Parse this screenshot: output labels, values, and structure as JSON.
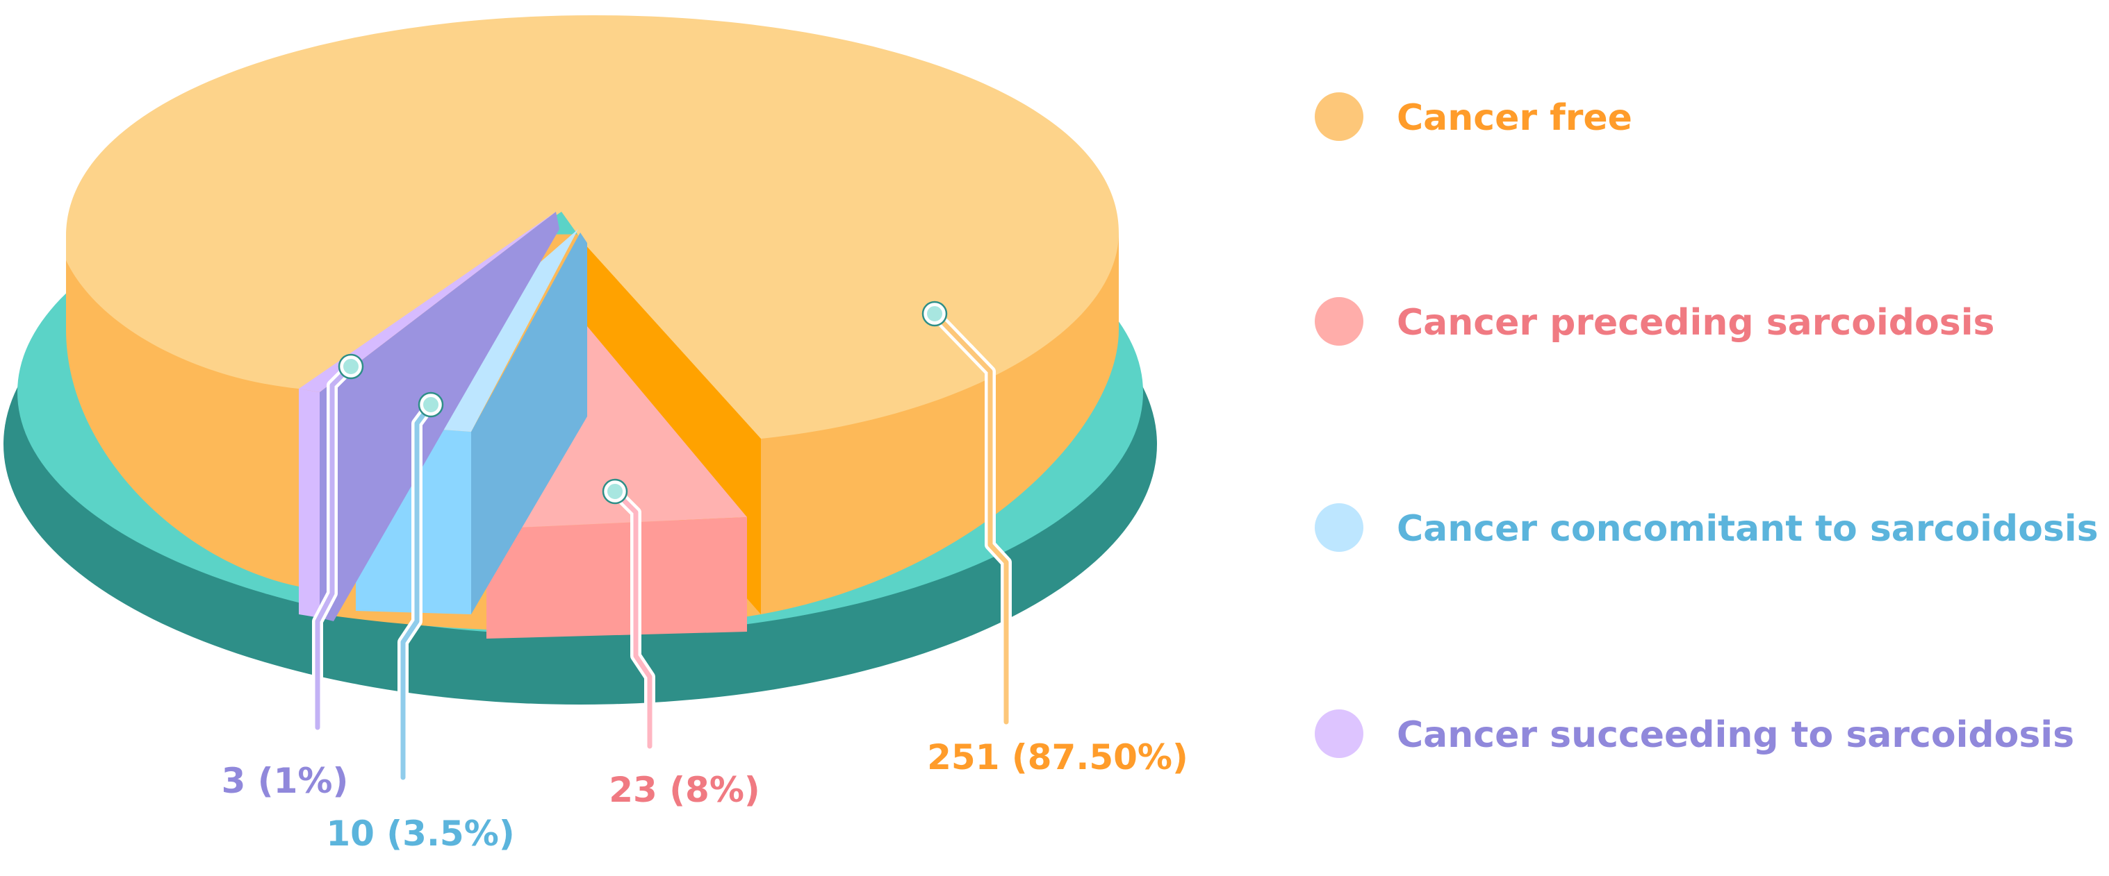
{
  "colors": {
    "platform_top": "#5BD3C7",
    "platform_side": "#2E8F88",
    "cancer_free_top": "#FDD38A",
    "cancer_free_side": "#FDB958",
    "cancer_free_face": "#FFA200",
    "preceding_top": "#FFB2B0",
    "preceding_side": "#FF9B97",
    "concomitant_top": "#BDE6FF",
    "concomitant_side": "#8BD6FF",
    "concomitant_face": "#6FB4DE",
    "succeeding_top": "#D6BBFF",
    "succeeding_face": "#9B93E0",
    "marker_fill": "#A8E6E0",
    "marker_stroke": "#2E8F88"
  },
  "chart_data": {
    "type": "pie",
    "title": "",
    "legend_position": "right",
    "slices": [
      {
        "key": "cancer_free",
        "name": "Cancer free",
        "value": 251,
        "percent": 87.5,
        "label": "251 (87.50%)",
        "legend_color": "#FDC779",
        "text_color": "#FF9C2A",
        "line_color": "#FDC779"
      },
      {
        "key": "preceding",
        "name": "Cancer preceding sarcoidosis",
        "value": 23,
        "percent": 8,
        "label": "23 (8%)",
        "legend_color": "#FFADAA",
        "text_color": "#F07A82",
        "line_color": "#FFB6C2"
      },
      {
        "key": "concomitant",
        "name": "Cancer concomitant to sarcoidosis",
        "value": 10,
        "percent": 3.5,
        "label": "10 (3.5%)",
        "legend_color": "#BDE6FF",
        "text_color": "#5BB4DC",
        "line_color": "#8FCCEB"
      },
      {
        "key": "succeeding",
        "name": "Cancer succeeding to sarcoidosis",
        "value": 3,
        "percent": 1,
        "label": "3 (1%)",
        "legend_color": "#DDC4FF",
        "text_color": "#9088DB",
        "line_color": "#C3B2F5"
      }
    ]
  }
}
